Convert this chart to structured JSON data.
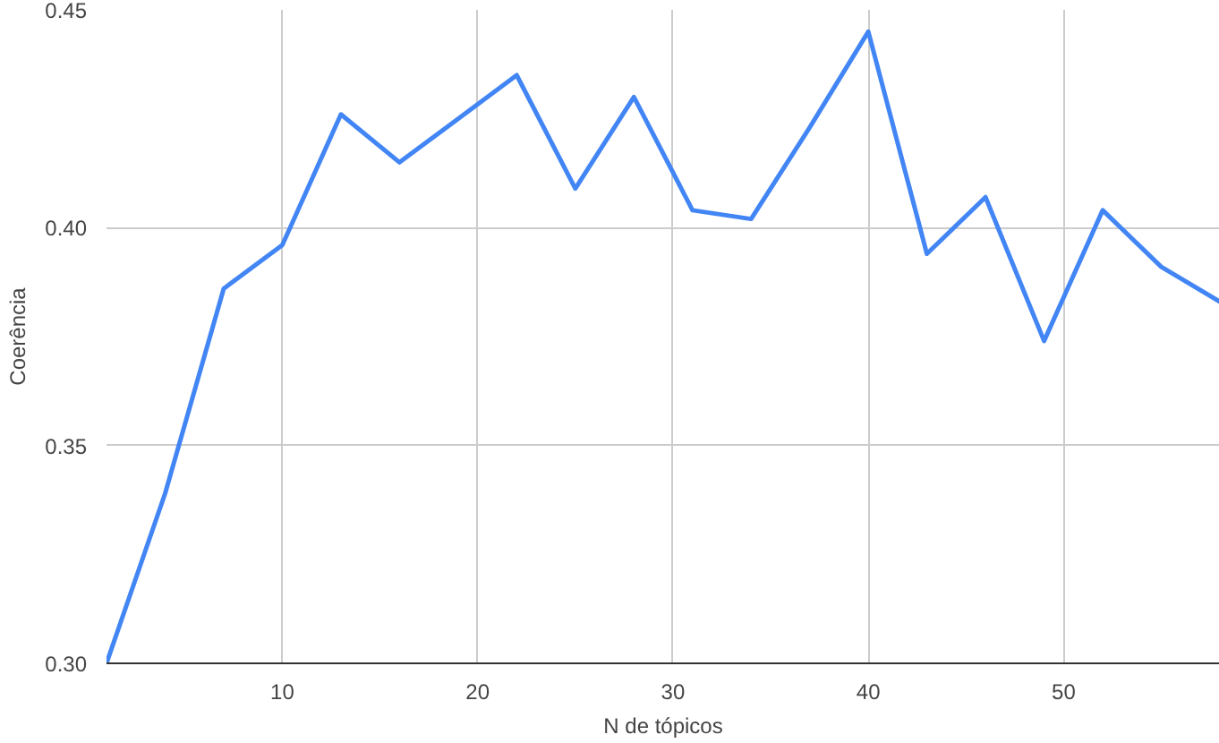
{
  "chart_data": {
    "type": "line",
    "xlabel": "N de tópicos",
    "ylabel": "Coerência",
    "x": [
      1,
      4,
      7,
      10,
      13,
      16,
      19,
      22,
      25,
      28,
      31,
      34,
      37,
      40,
      43,
      46,
      49,
      52,
      55,
      58
    ],
    "series": [
      {
        "color": "#4285f4",
        "values": [
          0.3,
          0.339,
          0.386,
          0.396,
          0.426,
          0.415,
          0.425,
          0.435,
          0.409,
          0.43,
          0.404,
          0.402,
          0.423,
          0.445,
          0.394,
          0.407,
          0.374,
          0.404,
          0.391,
          0.383
        ]
      }
    ],
    "xlim": [
      1,
      58
    ],
    "ylim": [
      0.3,
      0.45
    ],
    "xticks": [
      10,
      20,
      30,
      40,
      50
    ],
    "yticks": [
      {
        "value": 0.3,
        "label": "0.30"
      },
      {
        "value": 0.35,
        "label": "0.35"
      },
      {
        "value": 0.4,
        "label": "0.40"
      },
      {
        "value": 0.45,
        "label": "0.45"
      }
    ],
    "grid": true,
    "marker": "none",
    "line_style": "solid"
  }
}
